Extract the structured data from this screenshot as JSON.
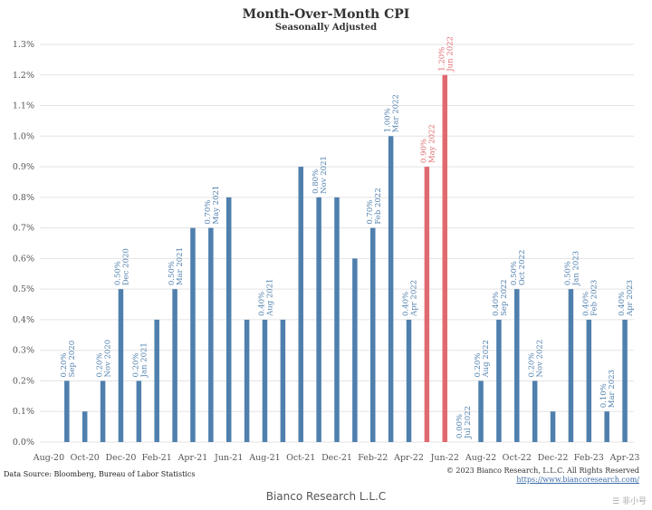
{
  "chart_data": {
    "type": "bar",
    "title": "Month-Over-Month CPI",
    "subtitle": "Seasonally Adjusted",
    "xlabel": "",
    "ylabel": "",
    "ylim": [
      0,
      1.3
    ],
    "y_ticks": [
      "0.0%",
      "0.1%",
      "0.2%",
      "0.3%",
      "0.4%",
      "0.5%",
      "0.6%",
      "0.7%",
      "0.8%",
      "0.9%",
      "1.0%",
      "1.1%",
      "1.2%",
      "1.3%"
    ],
    "grid": true,
    "categories": [
      "Aug-20",
      "Sep-20",
      "Oct-20",
      "Nov-20",
      "Dec-20",
      "Jan-21",
      "Feb-21",
      "Mar-21",
      "Apr-21",
      "May-21",
      "Jun-21",
      "Jul-21",
      "Aug-21",
      "Sep-21",
      "Oct-21",
      "Nov-21",
      "Dec-21",
      "Jan-22",
      "Feb-22",
      "Mar-22",
      "Apr-22",
      "May-22",
      "Jun-22",
      "Jul-22",
      "Aug-22",
      "Sep-22",
      "Oct-22",
      "Nov-22",
      "Dec-22",
      "Jan-23",
      "Feb-23",
      "Mar-23",
      "Apr-23"
    ],
    "x_tick_labels": [
      "Aug-20",
      "Oct-20",
      "Dec-20",
      "Feb-21",
      "Apr-21",
      "Jun-21",
      "Aug-21",
      "Oct-21",
      "Dec-21",
      "Feb-22",
      "Apr-22",
      "Jun-22",
      "Aug-22",
      "Oct-22",
      "Dec-22",
      "Feb-23",
      "Apr-23"
    ],
    "values": [
      0.0,
      0.2,
      0.1,
      0.2,
      0.5,
      0.2,
      0.4,
      0.5,
      0.7,
      0.7,
      0.8,
      0.4,
      0.4,
      0.4,
      0.9,
      0.8,
      0.8,
      0.6,
      0.7,
      1.0,
      0.4,
      0.9,
      1.2,
      0.0,
      0.2,
      0.4,
      0.5,
      0.2,
      0.1,
      0.5,
      0.4,
      0.1,
      0.4
    ],
    "highlight_indices": [
      21,
      22
    ],
    "colors": {
      "bar": "#4f7fad",
      "highlight": "#e06a6f",
      "grid": "#e3e3e3"
    },
    "annotations": [
      {
        "index": 1,
        "value_text": "0.20%",
        "date_text": "Sep 2020"
      },
      {
        "index": 3,
        "value_text": "0.20%",
        "date_text": "Nov 2020"
      },
      {
        "index": 4,
        "value_text": "0.50%",
        "date_text": "Dec 2020"
      },
      {
        "index": 5,
        "value_text": "0.20%",
        "date_text": "Jan 2021"
      },
      {
        "index": 7,
        "value_text": "0.50%",
        "date_text": "Mar 2021"
      },
      {
        "index": 9,
        "value_text": "0.70%",
        "date_text": "May 2021"
      },
      {
        "index": 12,
        "value_text": "0.40%",
        "date_text": "Aug 2021"
      },
      {
        "index": 15,
        "value_text": "0.80%",
        "date_text": "Nov 2021"
      },
      {
        "index": 18,
        "value_text": "0.70%",
        "date_text": "Feb 2022"
      },
      {
        "index": 19,
        "value_text": "1.00%",
        "date_text": "Mar 2022"
      },
      {
        "index": 20,
        "value_text": "0.40%",
        "date_text": "Apr 2022"
      },
      {
        "index": 21,
        "value_text": "0.90%",
        "date_text": "May 2022"
      },
      {
        "index": 22,
        "value_text": "1.20%",
        "date_text": "Jun 2022"
      },
      {
        "index": 23,
        "value_text": "0.00%",
        "date_text": "Jul 2022"
      },
      {
        "index": 24,
        "value_text": "0.20%",
        "date_text": "Aug 2022"
      },
      {
        "index": 25,
        "value_text": "0.40%",
        "date_text": "Sep 2022"
      },
      {
        "index": 26,
        "value_text": "0.50%",
        "date_text": "Oct 2022"
      },
      {
        "index": 27,
        "value_text": "0.20%",
        "date_text": "Nov 2022"
      },
      {
        "index": 29,
        "value_text": "0.50%",
        "date_text": "Jan 2023"
      },
      {
        "index": 30,
        "value_text": "0.40%",
        "date_text": "Feb 2023"
      },
      {
        "index": 31,
        "value_text": "0.10%",
        "date_text": "Mar 2023"
      },
      {
        "index": 32,
        "value_text": "0.40%",
        "date_text": "Apr 2023"
      }
    ]
  },
  "source_note": "Data Source: Bloomberg, Bureau of Labor Statistics",
  "copyright": "© 2023 Bianco Research, L.L.C. All Rights Reserved",
  "website": "https://www.biancoresearch.com/",
  "footer": "Bianco Research L.L.C",
  "watermark": "☰ 非小号"
}
